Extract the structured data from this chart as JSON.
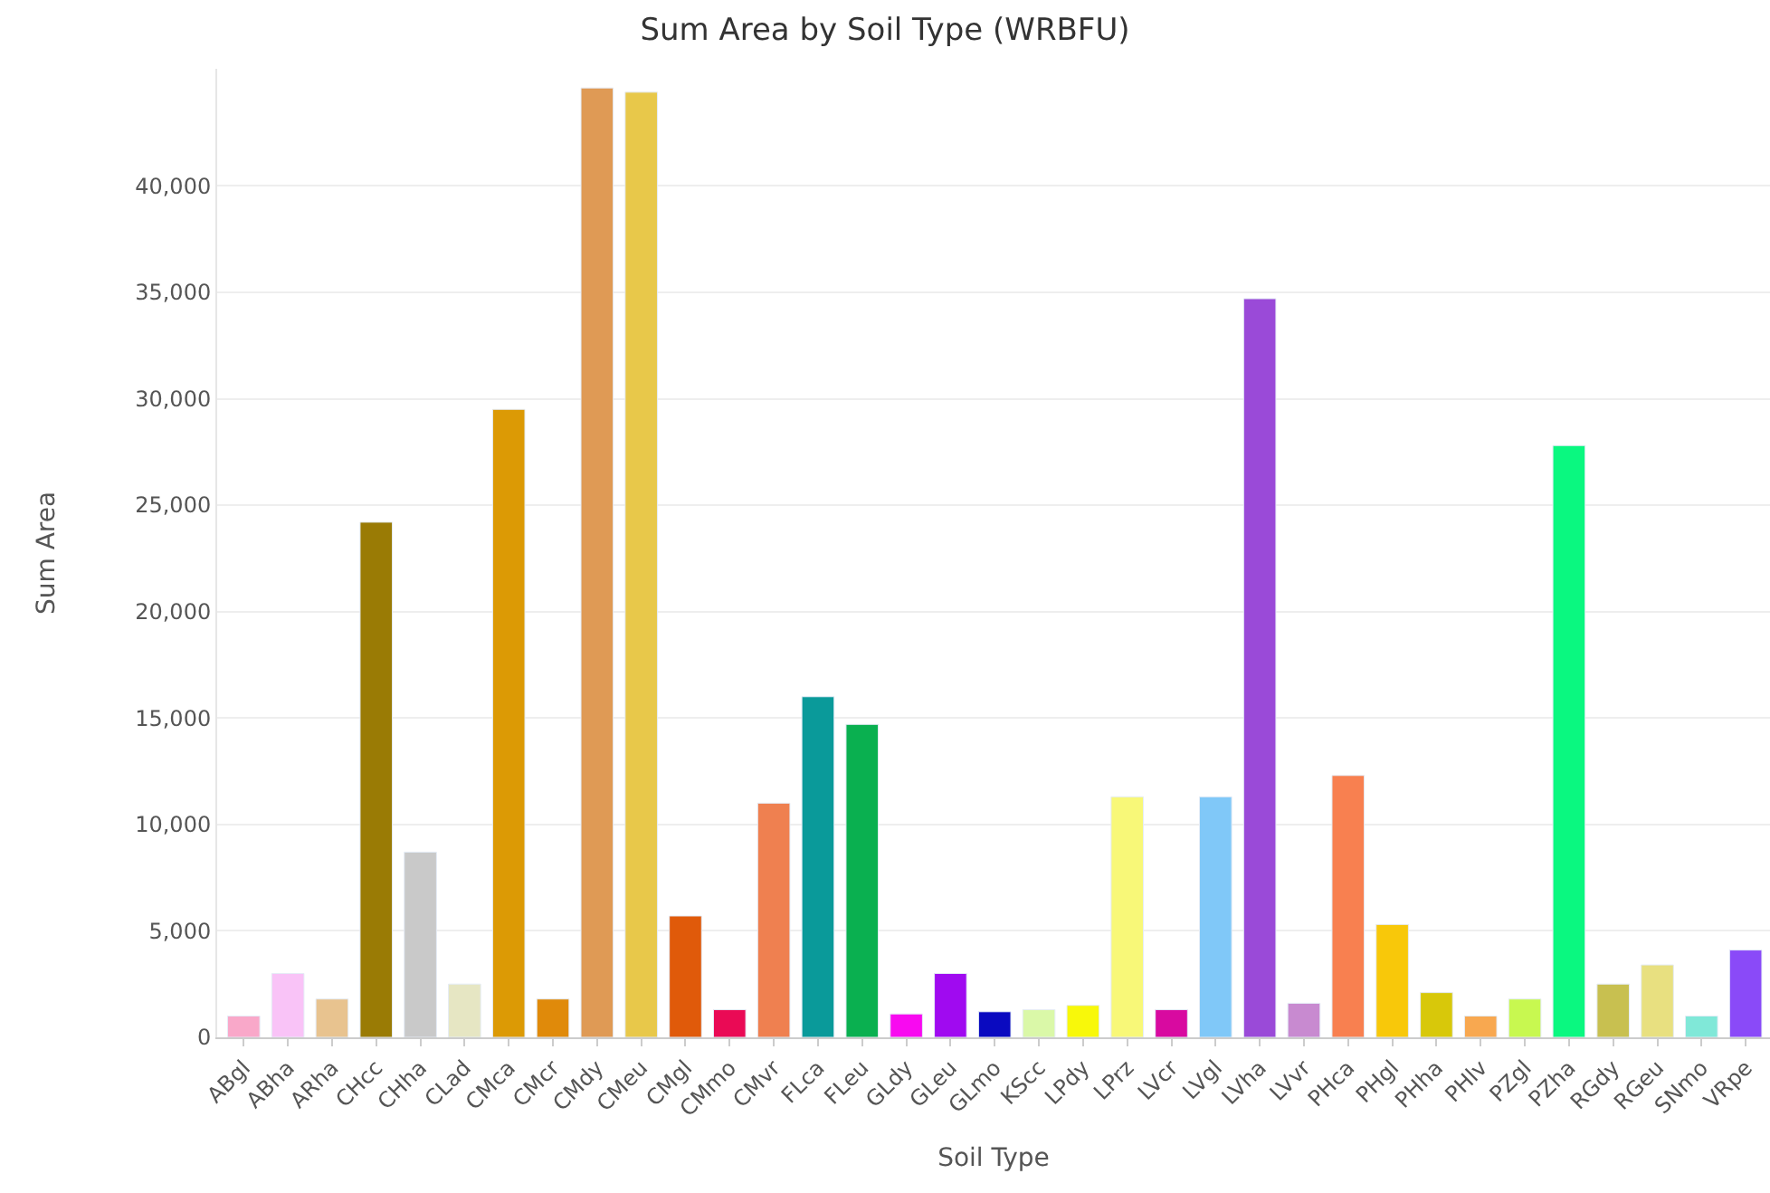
{
  "chart_data": {
    "type": "bar",
    "title": "Sum Area by Soil Type (WRBFU)",
    "xlabel": "Soil Type",
    "ylabel": "Sum Area",
    "categories": [
      "ABgl",
      "ABha",
      "ARha",
      "CHcc",
      "CHha",
      "CLad",
      "CMca",
      "CMcr",
      "CMdy",
      "CMeu",
      "CMgl",
      "CMmo",
      "CMvr",
      "FLca",
      "FLeu",
      "GLdy",
      "GLeu",
      "GLmo",
      "KScc",
      "LPdy",
      "LPrz",
      "LVcr",
      "LVgl",
      "LVha",
      "LVvr",
      "PHca",
      "PHgl",
      "PHha",
      "PHlv",
      "PZgl",
      "PZha",
      "RGdy",
      "RGeu",
      "SNmo",
      "VRpe"
    ],
    "values": [
      1000,
      3000,
      1800,
      24200,
      8700,
      2500,
      29500,
      1800,
      44600,
      44400,
      5700,
      1300,
      11000,
      16000,
      14700,
      1100,
      3000,
      1200,
      1300,
      1500,
      11300,
      1300,
      11300,
      34700,
      1600,
      12300,
      5300,
      2100,
      1000,
      1800,
      27800,
      2500,
      3400,
      1000,
      4100
    ],
    "colors": [
      "#f9a8c9",
      "#f9c3f7",
      "#e8c38f",
      "#9a7b05",
      "#c9c9c9",
      "#e6e6c3",
      "#dc9a05",
      "#e08a0a",
      "#df9a55",
      "#e8c84a",
      "#e05a0a",
      "#ea0a55",
      "#ef8050",
      "#0a9a9a",
      "#0ab050",
      "#f80af0",
      "#a00af0",
      "#0a0ac0",
      "#daf8a8",
      "#f8f80a",
      "#f8f878",
      "#d80aa0",
      "#80c8f8",
      "#9a4ad8",
      "#c88ad0",
      "#f88050",
      "#f8c80a",
      "#d8c80a",
      "#f8a850",
      "#c8f850",
      "#0af880",
      "#c8c050",
      "#e8e080",
      "#80e8d8",
      "#8a4af8"
    ],
    "ylim": [
      0,
      45500
    ],
    "yticks": [
      {
        "value": 0,
        "label": "0"
      },
      {
        "value": 5000,
        "label": "5,000"
      },
      {
        "value": 10000,
        "label": "10,000"
      },
      {
        "value": 15000,
        "label": "15,000"
      },
      {
        "value": 20000,
        "label": "20,000"
      },
      {
        "value": 25000,
        "label": "25,000"
      },
      {
        "value": 30000,
        "label": "30,000"
      },
      {
        "value": 35000,
        "label": "35,000"
      },
      {
        "value": 40000,
        "label": "40,000"
      }
    ],
    "grid": "y"
  }
}
